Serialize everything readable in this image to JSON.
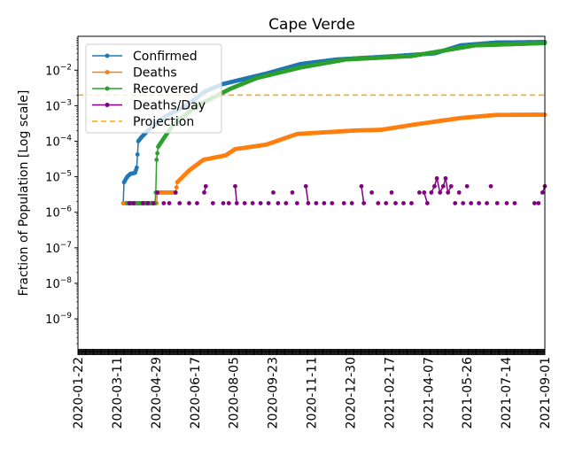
{
  "chart_data": {
    "type": "line",
    "title": "Cape Verde",
    "xlabel": "",
    "ylabel": "Fraction of Population [Log scale]",
    "yscale": "log",
    "ylim": [
      1.2e-10,
      0.09
    ],
    "x_start": "2020-01-22",
    "x_days": 588,
    "x_tick_labels": [
      "2020-01-22",
      "2020-03-11",
      "2020-04-29",
      "2020-06-17",
      "2020-08-05",
      "2020-09-23",
      "2020-11-11",
      "2020-12-30",
      "2021-02-17",
      "2021-04-07",
      "2021-05-26",
      "2021-07-14",
      "2021-09-01"
    ],
    "y_ticks": [
      {
        "base": "10",
        "exp": "−2",
        "value": 0.01
      },
      {
        "base": "10",
        "exp": "−3",
        "value": 0.001
      },
      {
        "base": "10",
        "exp": "−4",
        "value": 0.0001
      },
      {
        "base": "10",
        "exp": "−5",
        "value": 1e-05
      },
      {
        "base": "10",
        "exp": "−6",
        "value": 1e-06
      },
      {
        "base": "10",
        "exp": "−7",
        "value": 1e-07
      },
      {
        "base": "10",
        "exp": "−8",
        "value": 1e-08
      },
      {
        "base": "10",
        "exp": "−9",
        "value": 1e-09
      }
    ],
    "legend_position": "upper-left",
    "series": [
      {
        "name": "Confirmed",
        "color": "#1f77b4",
        "style": "line-marker",
        "points": [
          [
            57,
            1.8e-06
          ],
          [
            58,
            7e-06
          ],
          [
            62,
            1e-05
          ],
          [
            66,
            1.2e-05
          ],
          [
            72,
            1.3e-05
          ],
          [
            74,
            1.8e-05
          ],
          [
            76,
            0.0001
          ],
          [
            80,
            0.00013
          ],
          [
            88,
            0.0002
          ],
          [
            110,
            0.0005
          ],
          [
            136,
            0.001
          ],
          [
            160,
            0.0025
          ],
          [
            181,
            0.004
          ],
          [
            237,
            0.008
          ],
          [
            281,
            0.015
          ],
          [
            326,
            0.02
          ],
          [
            400,
            0.025
          ],
          [
            450,
            0.03
          ],
          [
            482,
            0.05
          ],
          [
            527,
            0.06
          ],
          [
            588,
            0.062
          ]
        ]
      },
      {
        "name": "Deaths",
        "color": "#ff7f0e",
        "style": "line-marker",
        "points": [
          [
            57,
            1.8e-06
          ],
          [
            99,
            1.8e-06
          ],
          [
            100,
            3.6e-06
          ],
          [
            123,
            3.6e-06
          ],
          [
            125,
            7e-06
          ],
          [
            140,
            1.5e-05
          ],
          [
            158,
            3e-05
          ],
          [
            186,
            4e-05
          ],
          [
            198,
            6e-05
          ],
          [
            237,
            8e-05
          ],
          [
            276,
            0.00016
          ],
          [
            348,
            0.0002
          ],
          [
            382,
            0.00021
          ],
          [
            426,
            0.0003
          ],
          [
            482,
            0.00045
          ],
          [
            527,
            0.00055
          ],
          [
            588,
            0.00056
          ]
        ]
      },
      {
        "name": "Recovered",
        "color": "#2ca02c",
        "style": "line-marker",
        "points": [
          [
            62,
            1.8e-06
          ],
          [
            97,
            1.8e-06
          ],
          [
            98,
            3.6e-06
          ],
          [
            99,
            3e-05
          ],
          [
            101,
            7e-05
          ],
          [
            108,
            0.00012
          ],
          [
            120,
            0.0003
          ],
          [
            150,
            0.001
          ],
          [
            192,
            0.003
          ],
          [
            225,
            0.006
          ],
          [
            281,
            0.012
          ],
          [
            337,
            0.02
          ],
          [
            420,
            0.025
          ],
          [
            500,
            0.05
          ],
          [
            588,
            0.058
          ]
        ]
      },
      {
        "name": "Deaths/Day",
        "color": "#800080",
        "style": "marker-sparse",
        "points": [
          [
            65,
            1.8e-06
          ],
          [
            70,
            1.8e-06
          ],
          [
            82,
            1.8e-06
          ],
          [
            88,
            1.8e-06
          ],
          [
            95,
            1.8e-06
          ],
          [
            100,
            3.6e-06
          ],
          [
            108,
            1.8e-06
          ],
          [
            115,
            1.8e-06
          ],
          [
            123,
            3.6e-06
          ],
          [
            128,
            1.8e-06
          ],
          [
            140,
            1.8e-06
          ],
          [
            150,
            1.8e-06
          ],
          [
            159,
            3.6e-06
          ],
          [
            161,
            5.4e-06
          ],
          [
            170,
            1.8e-06
          ],
          [
            183,
            1.8e-06
          ],
          [
            190,
            1.8e-06
          ],
          [
            198,
            5.4e-06
          ],
          [
            200,
            1.8e-06
          ],
          [
            210,
            1.8e-06
          ],
          [
            220,
            1.8e-06
          ],
          [
            230,
            1.8e-06
          ],
          [
            240,
            1.8e-06
          ],
          [
            246,
            3.6e-06
          ],
          [
            252,
            1.8e-06
          ],
          [
            262,
            1.8e-06
          ],
          [
            270,
            3.6e-06
          ],
          [
            276,
            1.8e-06
          ],
          [
            287,
            5.4e-06
          ],
          [
            290,
            1.8e-06
          ],
          [
            300,
            1.8e-06
          ],
          [
            310,
            1.8e-06
          ],
          [
            320,
            1.8e-06
          ],
          [
            335,
            1.8e-06
          ],
          [
            345,
            1.8e-06
          ],
          [
            357,
            5.4e-06
          ],
          [
            360,
            1.8e-06
          ],
          [
            370,
            3.6e-06
          ],
          [
            378,
            1.8e-06
          ],
          [
            388,
            1.8e-06
          ],
          [
            395,
            3.6e-06
          ],
          [
            400,
            1.8e-06
          ],
          [
            410,
            1.8e-06
          ],
          [
            420,
            1.8e-06
          ],
          [
            430,
            3.6e-06
          ],
          [
            436,
            3.6e-06
          ],
          [
            440,
            1.8e-06
          ],
          [
            445,
            3.6e-06
          ],
          [
            449,
            5.4e-06
          ],
          [
            452,
            9e-06
          ],
          [
            456,
            3.6e-06
          ],
          [
            460,
            5.4e-06
          ],
          [
            463,
            9e-06
          ],
          [
            466,
            3.6e-06
          ],
          [
            470,
            5.4e-06
          ],
          [
            475,
            1.8e-06
          ],
          [
            480,
            3.6e-06
          ],
          [
            485,
            1.8e-06
          ],
          [
            490,
            5.4e-06
          ],
          [
            495,
            1.8e-06
          ],
          [
            505,
            1.8e-06
          ],
          [
            515,
            1.8e-06
          ],
          [
            520,
            5.4e-06
          ],
          [
            528,
            1.8e-06
          ],
          [
            540,
            1.8e-06
          ],
          [
            550,
            1.8e-06
          ],
          [
            575,
            1.8e-06
          ],
          [
            580,
            1.8e-06
          ],
          [
            585,
            3.6e-06
          ],
          [
            588,
            5.4e-06
          ]
        ]
      },
      {
        "name": "Projection",
        "color": "#ffa500",
        "style": "dashed-hline",
        "value": 0.002
      }
    ]
  }
}
